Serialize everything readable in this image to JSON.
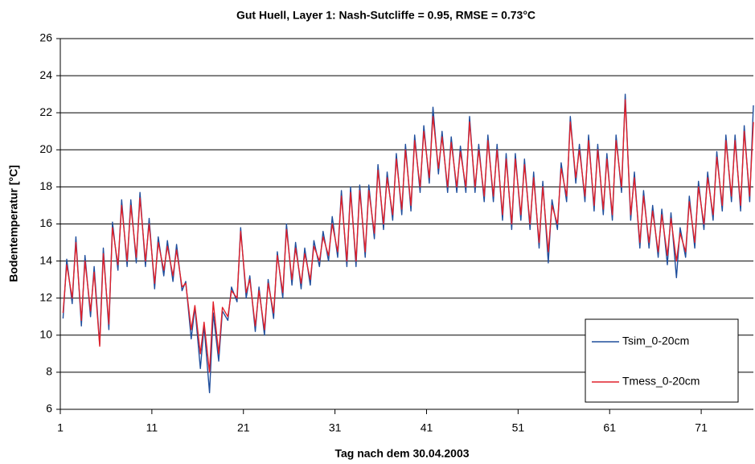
{
  "chart_data": {
    "type": "line",
    "title": "Gut Huell, Layer 1: Nash-Sutcliffe = 0.95, RMSE = 0.73°C",
    "x_label": "Tag nach dem 30.04.2003",
    "y_label": "Bodentemperatur [°C]",
    "xlim": [
      1,
      76.7
    ],
    "xticks": [
      1,
      11,
      21,
      31,
      41,
      51,
      61,
      71
    ],
    "ylim": [
      6,
      26
    ],
    "yticks": [
      6,
      8,
      10,
      12,
      14,
      16,
      18,
      20,
      22,
      24,
      26
    ],
    "grid": true,
    "legend": "lower right",
    "x": [
      1.3,
      1.7,
      2.3,
      2.7,
      3.3,
      3.7,
      4.3,
      4.7,
      5.3,
      5.7,
      6.3,
      6.7,
      7.3,
      7.7,
      8.3,
      8.7,
      9.3,
      9.7,
      10.3,
      10.7,
      11.3,
      11.7,
      12.3,
      12.7,
      13.3,
      13.7,
      14.3,
      14.7,
      15.3,
      15.7,
      16.3,
      16.7,
      17.3,
      17.7,
      18.3,
      18.7,
      19.3,
      19.7,
      20.3,
      20.7,
      21.3,
      21.7,
      22.3,
      22.7,
      23.3,
      23.7,
      24.3,
      24.7,
      25.3,
      25.7,
      26.3,
      26.7,
      27.3,
      27.7,
      28.3,
      28.7,
      29.3,
      29.7,
      30.3,
      30.7,
      31.3,
      31.7,
      32.3,
      32.7,
      33.3,
      33.7,
      34.3,
      34.7,
      35.3,
      35.7,
      36.3,
      36.7,
      37.3,
      37.7,
      38.3,
      38.7,
      39.3,
      39.7,
      40.3,
      40.7,
      41.3,
      41.7,
      42.3,
      42.7,
      43.3,
      43.7,
      44.3,
      44.7,
      45.3,
      45.7,
      46.3,
      46.7,
      47.3,
      47.7,
      48.3,
      48.7,
      49.3,
      49.7,
      50.3,
      50.7,
      51.3,
      51.7,
      52.3,
      52.7,
      53.3,
      53.7,
      54.3,
      54.7,
      55.3,
      55.7,
      56.3,
      56.7,
      57.3,
      57.7,
      58.3,
      58.7,
      59.3,
      59.7,
      60.3,
      60.7,
      61.3,
      61.7,
      62.3,
      62.7,
      63.3,
      63.7,
      64.3,
      64.7,
      65.3,
      65.7,
      66.3,
      66.7,
      67.3,
      67.7,
      68.3,
      68.7,
      69.3,
      69.7,
      70.3,
      70.7,
      71.3,
      71.7,
      72.3,
      72.7,
      73.3,
      73.7,
      74.3,
      74.7,
      75.3,
      75.7,
      76.3,
      76.7
    ],
    "series": [
      {
        "name": "Tsim_0-20cm",
        "color": "#1f4e9c",
        "values": [
          10.9,
          14.1,
          11.7,
          15.3,
          10.5,
          14.3,
          11.0,
          13.7,
          9.5,
          14.7,
          10.3,
          16.1,
          13.5,
          17.3,
          13.7,
          17.3,
          13.9,
          17.7,
          13.7,
          16.3,
          12.5,
          15.3,
          13.2,
          15.1,
          12.9,
          14.9,
          12.4,
          12.9,
          9.8,
          11.5,
          8.2,
          10.5,
          6.9,
          11.2,
          8.6,
          11.3,
          10.8,
          12.6,
          11.8,
          15.8,
          12.0,
          13.2,
          10.2,
          12.6,
          10.0,
          13.0,
          10.9,
          14.5,
          12.0,
          16.0,
          12.7,
          15.0,
          12.5,
          14.7,
          12.7,
          15.1,
          13.7,
          15.6,
          14.0,
          16.4,
          14.2,
          17.8,
          13.7,
          18.0,
          13.7,
          18.1,
          14.2,
          18.1,
          15.2,
          19.2,
          15.7,
          18.8,
          16.2,
          19.8,
          16.5,
          20.3,
          16.7,
          20.8,
          17.7,
          21.3,
          18.2,
          22.3,
          18.7,
          21.0,
          17.7,
          20.7,
          17.7,
          20.2,
          17.7,
          21.8,
          17.7,
          20.3,
          17.2,
          20.8,
          17.2,
          20.3,
          16.2,
          19.8,
          15.7,
          19.8,
          16.2,
          19.5,
          15.7,
          18.8,
          14.7,
          18.3,
          13.9,
          17.3,
          15.7,
          19.3,
          17.2,
          21.8,
          18.2,
          20.3,
          17.2,
          20.8,
          16.7,
          20.3,
          16.5,
          19.8,
          16.2,
          20.8,
          17.7,
          23.0,
          16.2,
          18.8,
          14.7,
          17.8,
          14.7,
          17.0,
          14.2,
          16.8,
          13.8,
          16.6,
          13.1,
          15.8,
          14.2,
          17.5,
          14.7,
          18.3,
          15.7,
          18.8,
          16.2,
          19.9,
          16.7,
          20.8,
          17.2,
          20.8,
          16.7,
          21.3,
          17.2,
          22.4
        ]
      },
      {
        "name": "Tmess_0-20cm",
        "color": "#e0202a",
        "values": [
          11.2,
          13.8,
          12.0,
          15.0,
          10.8,
          14.0,
          11.3,
          13.4,
          9.4,
          14.4,
          10.6,
          15.8,
          13.8,
          17.0,
          14.0,
          17.0,
          14.2,
          17.4,
          14.0,
          16.0,
          12.8,
          15.0,
          13.5,
          14.8,
          13.2,
          14.6,
          12.6,
          12.8,
          10.3,
          11.6,
          9.0,
          10.7,
          8.0,
          11.8,
          9.0,
          11.5,
          11.0,
          12.4,
          12.0,
          15.6,
          12.3,
          13.0,
          10.5,
          12.4,
          10.3,
          12.8,
          11.2,
          14.3,
          12.3,
          15.7,
          13.0,
          14.7,
          12.8,
          14.4,
          13.0,
          14.8,
          14.0,
          15.3,
          14.3,
          16.0,
          14.5,
          17.5,
          14.0,
          17.7,
          14.0,
          17.8,
          14.5,
          17.8,
          15.5,
          18.9,
          16.0,
          18.5,
          16.5,
          19.5,
          16.8,
          20.0,
          17.0,
          20.5,
          18.0,
          21.0,
          18.5,
          21.8,
          19.0,
          20.7,
          18.0,
          20.4,
          18.0,
          19.9,
          18.0,
          21.5,
          18.0,
          20.0,
          17.5,
          20.5,
          17.5,
          20.0,
          16.5,
          19.5,
          16.0,
          19.5,
          16.5,
          19.2,
          16.0,
          18.5,
          15.0,
          18.0,
          14.5,
          17.0,
          16.0,
          19.0,
          17.5,
          21.5,
          18.5,
          20.0,
          17.5,
          20.5,
          17.0,
          20.0,
          16.8,
          19.5,
          16.5,
          20.5,
          18.0,
          22.7,
          16.5,
          18.5,
          15.0,
          17.5,
          15.0,
          16.7,
          14.5,
          16.5,
          14.3,
          16.3,
          14.0,
          15.5,
          14.5,
          17.2,
          15.0,
          18.0,
          16.0,
          18.5,
          16.5,
          19.6,
          17.0,
          20.5,
          17.5,
          20.5,
          17.0,
          21.0,
          17.5,
          21.5
        ]
      }
    ]
  }
}
